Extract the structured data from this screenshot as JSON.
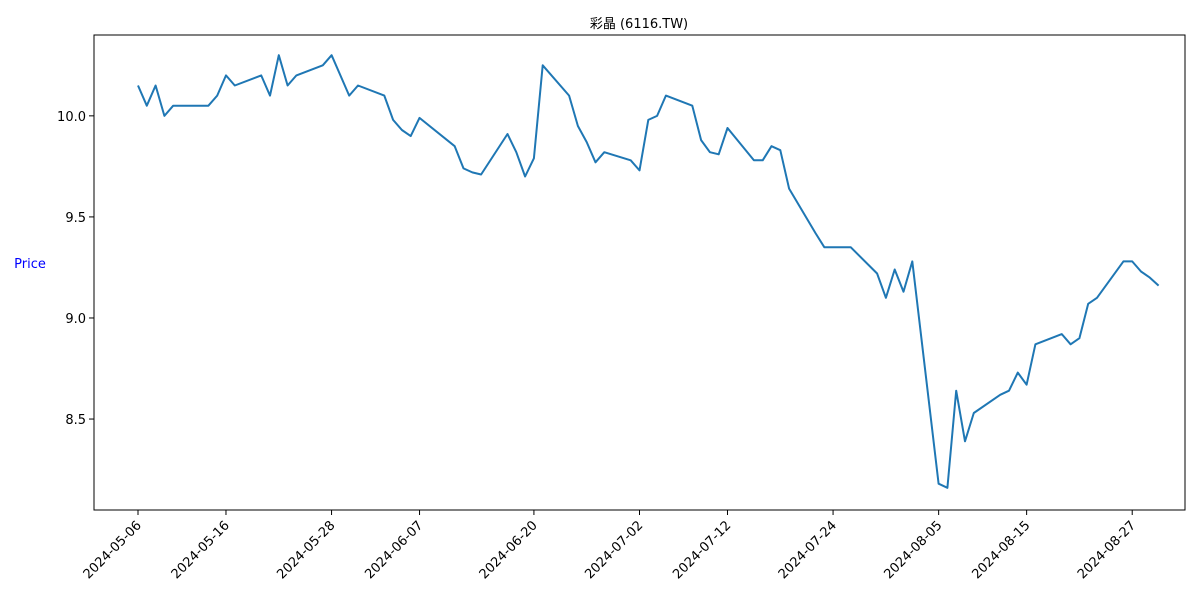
{
  "chart_data": {
    "type": "line",
    "title": "彩晶 (6116.TW)",
    "xlabel": "",
    "ylabel": "Price",
    "ylabel_color": "#0000ff",
    "line_color": "#1f77b4",
    "grid": false,
    "legend": "none",
    "xlim": [
      "2024-05-01",
      "2024-09-02"
    ],
    "ylim": [
      8.05,
      10.4
    ],
    "y_ticks": [
      8.5,
      9.0,
      9.5,
      10.0
    ],
    "x_ticks": [
      "2024-05-06",
      "2024-05-16",
      "2024-05-28",
      "2024-06-07",
      "2024-06-20",
      "2024-07-02",
      "2024-07-12",
      "2024-07-24",
      "2024-08-05",
      "2024-08-15",
      "2024-08-27"
    ],
    "series": [
      {
        "x": [
          "2024-05-06",
          "2024-05-07",
          "2024-05-08",
          "2024-05-09",
          "2024-05-10",
          "2024-05-13",
          "2024-05-14",
          "2024-05-15",
          "2024-05-16",
          "2024-05-17",
          "2024-05-20",
          "2024-05-21",
          "2024-05-22",
          "2024-05-23",
          "2024-05-24",
          "2024-05-27",
          "2024-05-28",
          "2024-05-29",
          "2024-05-30",
          "2024-05-31",
          "2024-06-03",
          "2024-06-04",
          "2024-06-05",
          "2024-06-06",
          "2024-06-07",
          "2024-06-11",
          "2024-06-12",
          "2024-06-13",
          "2024-06-14",
          "2024-06-17",
          "2024-06-18",
          "2024-06-19",
          "2024-06-20",
          "2024-06-21",
          "2024-06-24",
          "2024-06-25",
          "2024-06-26",
          "2024-06-27",
          "2024-06-28",
          "2024-07-01",
          "2024-07-02",
          "2024-07-03",
          "2024-07-04",
          "2024-07-05",
          "2024-07-08",
          "2024-07-09",
          "2024-07-10",
          "2024-07-11",
          "2024-07-12",
          "2024-07-15",
          "2024-07-16",
          "2024-07-17",
          "2024-07-18",
          "2024-07-19",
          "2024-07-22",
          "2024-07-23",
          "2024-07-26",
          "2024-07-29",
          "2024-07-30",
          "2024-07-31",
          "2024-08-01",
          "2024-08-02",
          "2024-08-05",
          "2024-08-06",
          "2024-08-07",
          "2024-08-08",
          "2024-08-09",
          "2024-08-12",
          "2024-08-13",
          "2024-08-14",
          "2024-08-15",
          "2024-08-16",
          "2024-08-19",
          "2024-08-20",
          "2024-08-21",
          "2024-08-22",
          "2024-08-23",
          "2024-08-26",
          "2024-08-27",
          "2024-08-28",
          "2024-08-29",
          "2024-08-30"
        ],
        "y": [
          10.15,
          10.05,
          10.15,
          10.0,
          10.05,
          10.05,
          10.05,
          10.1,
          10.2,
          10.15,
          10.2,
          10.1,
          10.3,
          10.15,
          10.2,
          10.25,
          10.3,
          10.2,
          10.1,
          10.15,
          10.1,
          9.98,
          9.93,
          9.9,
          9.99,
          9.85,
          9.74,
          9.72,
          9.71,
          9.91,
          9.82,
          9.7,
          9.79,
          10.25,
          10.1,
          9.95,
          9.87,
          9.77,
          9.82,
          9.78,
          9.73,
          9.98,
          10.0,
          10.1,
          10.05,
          9.88,
          9.82,
          9.81,
          9.94,
          9.78,
          9.78,
          9.85,
          9.83,
          9.64,
          9.42,
          9.35,
          9.35,
          9.22,
          9.1,
          9.24,
          9.13,
          9.28,
          8.18,
          8.16,
          8.64,
          8.39,
          8.53,
          8.62,
          8.64,
          8.73,
          8.67,
          8.87,
          8.92,
          8.87,
          8.9,
          9.07,
          9.1,
          9.28,
          9.28,
          9.23,
          9.2,
          9.16
        ]
      }
    ]
  }
}
